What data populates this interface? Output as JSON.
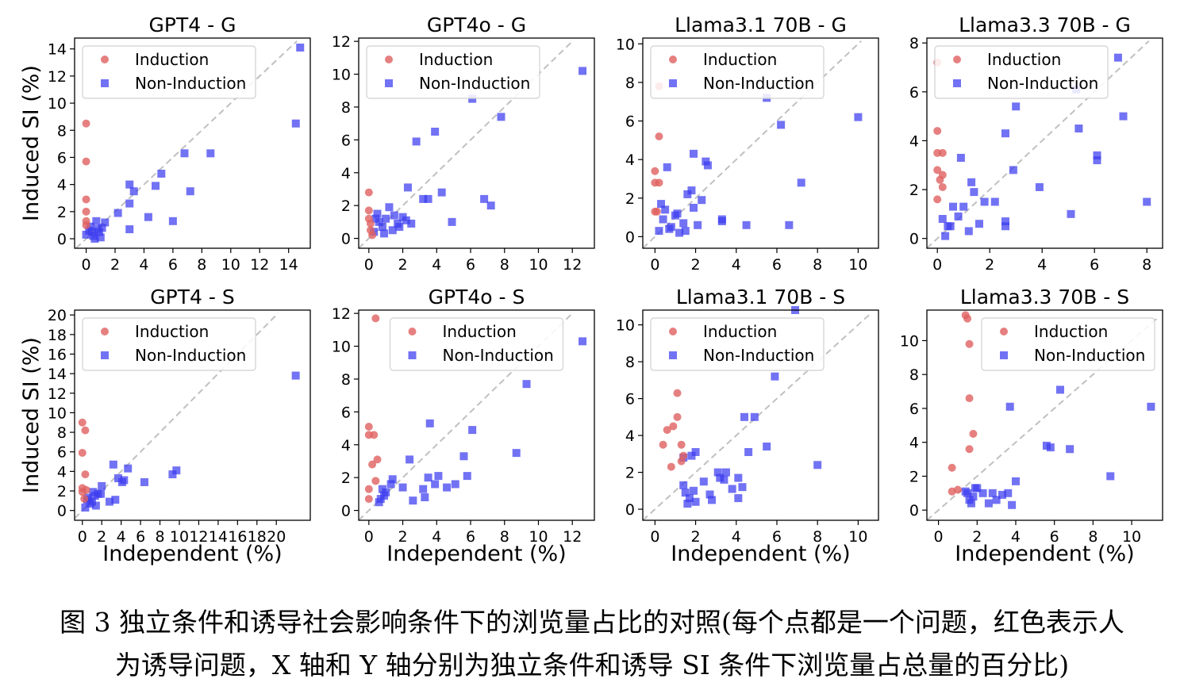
{
  "figure": {
    "ylabel": "Induced SI (%)",
    "xlabel": "Independent (%)",
    "legend": {
      "induction": "Induction",
      "non_induction": "Non-Induction"
    },
    "colors": {
      "induction": "#e06060",
      "non_induction": "#3b3bf0",
      "diagonal": "#c0c0c0"
    }
  },
  "caption": {
    "line1": "图 3  独立条件和诱导社会影响条件下的浏览量占比的对照(每个点都是一个问题，红色表示人",
    "line2": "为诱导问题，X 轴和 Y 轴分别为独立条件和诱导 SI 条件下浏览量占总量的百分比)"
  },
  "chart_data": [
    {
      "type": "scatter",
      "title": "GPT4 - G",
      "legend_position": "upper-left",
      "xlim": [
        -0.8,
        15.5
      ],
      "ylim": [
        -0.7,
        14.8
      ],
      "xticks": [
        0,
        2,
        4,
        6,
        8,
        10,
        12,
        14
      ],
      "yticks": [
        0,
        2,
        4,
        6,
        8,
        10,
        12,
        14
      ],
      "series": [
        {
          "name": "Induction",
          "x": [
            0,
            0,
            0,
            0,
            0,
            0
          ],
          "y": [
            8.5,
            5.7,
            2.9,
            2.0,
            1.3,
            1.0
          ]
        },
        {
          "name": "Non-Induction",
          "x": [
            14.8,
            14.5,
            8.6,
            6.8,
            7.2,
            5.2,
            4.8,
            4.3,
            3.3,
            3.0,
            3.0,
            2.2,
            6.0,
            3.0,
            1.3,
            1.1,
            0.9,
            0.7,
            0.5,
            0.3,
            0.2,
            0,
            0.6,
            1.0,
            0.4,
            0.8
          ],
          "y": [
            14.1,
            8.5,
            6.3,
            6.3,
            3.5,
            4.8,
            3.9,
            1.6,
            3.5,
            2.6,
            0.7,
            1.9,
            1.3,
            4.0,
            1.2,
            0.8,
            0.5,
            1.3,
            0.2,
            0.9,
            0.6,
            0.3,
            0,
            0.1,
            0.5,
            0.7
          ]
        }
      ]
    },
    {
      "type": "scatter",
      "title": "GPT4o - G",
      "legend_position": "upper-left",
      "xlim": [
        -0.6,
        13.3
      ],
      "ylim": [
        -0.6,
        12.2
      ],
      "xticks": [
        0,
        2,
        4,
        6,
        8,
        10,
        12
      ],
      "yticks": [
        0,
        2,
        4,
        6,
        8,
        10,
        12
      ],
      "series": [
        {
          "name": "Induction",
          "x": [
            0,
            0,
            0,
            0.1,
            0.1,
            0.2
          ],
          "y": [
            2.8,
            1.7,
            1.2,
            0.9,
            0.5,
            0.2
          ]
        },
        {
          "name": "Non-Induction",
          "x": [
            12.6,
            7.8,
            6.1,
            3.9,
            2.8,
            4.3,
            2.3,
            3.5,
            3.2,
            4.9,
            6.8,
            7.2,
            2.5,
            2.2,
            1.5,
            1.2,
            1.0,
            0.8,
            0.6,
            0.4,
            1.4,
            0.3,
            1.8,
            0.9,
            0.5,
            2.0,
            1.7
          ],
          "y": [
            10.2,
            7.4,
            8.5,
            6.5,
            5.9,
            2.8,
            3.1,
            2.4,
            2.4,
            1.0,
            2.4,
            2.0,
            0.9,
            1.1,
            1.4,
            1.9,
            1.2,
            0.7,
            1.0,
            1.2,
            0.5,
            0.4,
            0.7,
            0.3,
            1.5,
            1.3,
            0.9
          ]
        }
      ]
    },
    {
      "type": "scatter",
      "title": "Llama3.1 70B - G",
      "legend_position": "upper-left",
      "xlim": [
        -0.6,
        11.0
      ],
      "ylim": [
        -0.6,
        10.3
      ],
      "xticks": [
        0,
        2,
        4,
        6,
        8,
        10
      ],
      "yticks": [
        0,
        2,
        4,
        6,
        8,
        10
      ],
      "series": [
        {
          "name": "Induction",
          "x": [
            0.2,
            0.2,
            0,
            0,
            0.2,
            0,
            0.1
          ],
          "y": [
            7.8,
            5.2,
            3.4,
            2.8,
            2.8,
            1.3,
            1.3
          ]
        },
        {
          "name": "Non-Induction",
          "x": [
            5.5,
            10.0,
            6.2,
            7.2,
            6.6,
            4.5,
            2.6,
            2.5,
            1.9,
            0.6,
            1.6,
            2.3,
            1.8,
            1.1,
            3.3,
            3.3,
            1.4,
            1.0,
            0.7,
            0.5,
            0.2,
            0.4,
            0.8,
            1.2,
            1.9,
            1.5,
            0.3,
            2.1
          ],
          "y": [
            7.2,
            6.2,
            5.8,
            2.8,
            0.6,
            0.6,
            3.7,
            3.9,
            4.3,
            3.6,
            2.2,
            1.9,
            2.4,
            1.2,
            0.9,
            0.8,
            0.7,
            1.1,
            0.4,
            1.4,
            0.3,
            0.9,
            0.5,
            0.2,
            1.5,
            0.3,
            1.7,
            0.6
          ]
        }
      ]
    },
    {
      "type": "scatter",
      "title": "Llama3.3 70B - G",
      "legend_position": "upper-left",
      "xlim": [
        -0.4,
        8.6
      ],
      "ylim": [
        -0.4,
        8.2
      ],
      "xticks": [
        0,
        2,
        4,
        6,
        8
      ],
      "yticks": [
        0,
        2,
        4,
        6,
        8
      ],
      "series": [
        {
          "name": "Induction",
          "x": [
            0,
            0,
            0,
            0.2,
            0,
            0.2,
            0.2,
            0,
            0.1
          ],
          "y": [
            7.2,
            4.4,
            3.5,
            3.5,
            2.8,
            2.6,
            2.1,
            1.6,
            2.4
          ]
        },
        {
          "name": "Non-Induction",
          "x": [
            6.9,
            5.3,
            7.1,
            3.0,
            2.6,
            5.4,
            6.1,
            6.1,
            2.9,
            0.9,
            1.3,
            3.9,
            5.1,
            8.0,
            1.4,
            1.8,
            2.2,
            2.6,
            0.6,
            1.0,
            0.8,
            0.5,
            0.3,
            0.2,
            1.6,
            1.2,
            0.4,
            2.6
          ],
          "y": [
            7.4,
            6.1,
            5.0,
            5.4,
            4.3,
            4.5,
            3.2,
            3.4,
            2.8,
            3.3,
            2.3,
            2.1,
            1.0,
            1.5,
            1.9,
            1.5,
            1.5,
            0.7,
            1.3,
            1.3,
            0.9,
            0.5,
            0.1,
            0.8,
            0.6,
            0.3,
            0.5,
            0.5
          ]
        }
      ]
    },
    {
      "type": "scatter",
      "title": "GPT4 - S",
      "legend_position": "upper-left",
      "xlim": [
        -0.8,
        23.5
      ],
      "ylim": [
        -1.0,
        20.5
      ],
      "xticks": [
        0,
        2,
        4,
        6,
        8,
        10,
        12,
        14,
        16,
        18,
        20
      ],
      "yticks": [
        0,
        2,
        4,
        6,
        8,
        10,
        12,
        14,
        16,
        18,
        20
      ],
      "series": [
        {
          "name": "Induction",
          "x": [
            0,
            0.3,
            0,
            0.3,
            0,
            0.4,
            0,
            0.2
          ],
          "y": [
            9.0,
            8.2,
            5.9,
            3.7,
            2.3,
            2.1,
            1.9,
            1.2
          ]
        },
        {
          "name": "Non-Induction",
          "x": [
            22.0,
            9.7,
            9.3,
            4.7,
            3.2,
            3.7,
            4.3,
            3.4,
            6.4,
            2.0,
            1.9,
            1.3,
            1.6,
            4.1,
            0.5,
            0.8,
            1.0,
            1.4,
            0.3,
            0.6,
            1.1,
            2.8
          ],
          "y": [
            13.8,
            4.1,
            3.7,
            4.3,
            4.7,
            3.3,
            3.1,
            1.1,
            2.9,
            2.5,
            1.7,
            1.5,
            1.7,
            2.9,
            1.1,
            0.7,
            0.9,
            0.5,
            0.3,
            1.3,
            1.9,
            0.9
          ]
        }
      ]
    },
    {
      "type": "scatter",
      "title": "GPT4o - S",
      "legend_position": "upper-center",
      "xlim": [
        -0.6,
        13.3
      ],
      "ylim": [
        -0.6,
        12.2
      ],
      "xticks": [
        0,
        2,
        4,
        6,
        8,
        10,
        12
      ],
      "yticks": [
        0,
        2,
        4,
        6,
        8,
        10,
        12
      ],
      "series": [
        {
          "name": "Induction",
          "x": [
            0.4,
            0,
            0.3,
            0,
            0.5,
            0.2,
            0.4,
            0,
            0
          ],
          "y": [
            11.7,
            5.1,
            4.6,
            4.6,
            3.1,
            2.8,
            1.8,
            1.3,
            0.7
          ]
        },
        {
          "name": "Non-Induction",
          "x": [
            12.6,
            9.3,
            8.7,
            6.1,
            5.6,
            3.6,
            2.4,
            4.1,
            3.9,
            3.5,
            3.3,
            5.1,
            5.8,
            4.6,
            2.0,
            1.4,
            1.3,
            0.9,
            0.8,
            0.7,
            1.0,
            0.6,
            2.6,
            3.2
          ],
          "y": [
            10.3,
            7.7,
            3.5,
            4.9,
            3.3,
            5.3,
            3.1,
            2.1,
            1.6,
            2.0,
            0.8,
            1.6,
            2.1,
            1.4,
            1.4,
            1.9,
            1.6,
            0.9,
            1.3,
            0.7,
            1.1,
            0.5,
            0.6,
            1.3
          ]
        }
      ]
    },
    {
      "type": "scatter",
      "title": "Llama3.1 70B - S",
      "legend_position": "upper-left",
      "xlim": [
        -0.6,
        11.0
      ],
      "ylim": [
        -0.6,
        10.8
      ],
      "xticks": [
        0,
        2,
        4,
        6,
        8,
        10
      ],
      "yticks": [
        0,
        2,
        4,
        6,
        8,
        10
      ],
      "series": [
        {
          "name": "Induction",
          "x": [
            1.1,
            1.1,
            0.9,
            0.6,
            1.3,
            0.4,
            1.4,
            1.3,
            0.8
          ],
          "y": [
            6.3,
            5.0,
            4.5,
            4.3,
            3.5,
            3.5,
            2.9,
            2.6,
            2.3
          ]
        },
        {
          "name": "Non-Induction",
          "x": [
            6.9,
            5.9,
            4.4,
            4.9,
            4.6,
            5.5,
            4.1,
            3.1,
            2.0,
            1.8,
            1.4,
            3.2,
            3.4,
            2.4,
            4.3,
            3.8,
            2.7,
            1.5,
            1.7,
            1.9,
            2.0,
            1.6,
            2.8,
            4.1,
            3.5,
            1.4,
            8.0
          ],
          "y": [
            10.8,
            7.2,
            5.0,
            5.0,
            3.1,
            3.4,
            1.7,
            2.0,
            3.1,
            2.9,
            2.8,
            1.7,
            1.6,
            1.5,
            1.2,
            1.1,
            0.8,
            0.9,
            0.6,
            1.0,
            0.4,
            0.3,
            0.5,
            0.6,
            2.0,
            1.3,
            2.4
          ]
        }
      ]
    },
    {
      "type": "scatter",
      "title": "Llama3.3 70B - S",
      "legend_position": "upper-right",
      "xlim": [
        -0.6,
        11.6
      ],
      "ylim": [
        -0.6,
        11.8
      ],
      "xticks": [
        0,
        2,
        4,
        6,
        8,
        10
      ],
      "yticks": [
        0,
        2,
        4,
        6,
        8,
        10
      ],
      "series": [
        {
          "name": "Induction",
          "x": [
            1.4,
            1.5,
            1.6,
            1.6,
            1.8,
            1.6,
            0.7,
            0.7,
            1.0
          ],
          "y": [
            11.5,
            11.3,
            9.8,
            6.6,
            4.5,
            3.6,
            2.5,
            1.1,
            1.2
          ]
        },
        {
          "name": "Non-Induction",
          "x": [
            11.0,
            6.3,
            3.7,
            5.6,
            5.8,
            6.8,
            4.0,
            8.9,
            1.9,
            1.4,
            1.6,
            1.8,
            2.0,
            2.3,
            2.8,
            3.0,
            3.3,
            3.6,
            3.8,
            2.6,
            1.7,
            1.5
          ],
          "y": [
            6.1,
            7.1,
            6.1,
            3.8,
            3.7,
            3.6,
            1.7,
            2.0,
            1.3,
            1.1,
            0.6,
            0.8,
            1.3,
            1.0,
            1.0,
            0.6,
            0.9,
            1.0,
            0.3,
            0.4,
            0.4,
            1.0
          ]
        }
      ]
    }
  ]
}
